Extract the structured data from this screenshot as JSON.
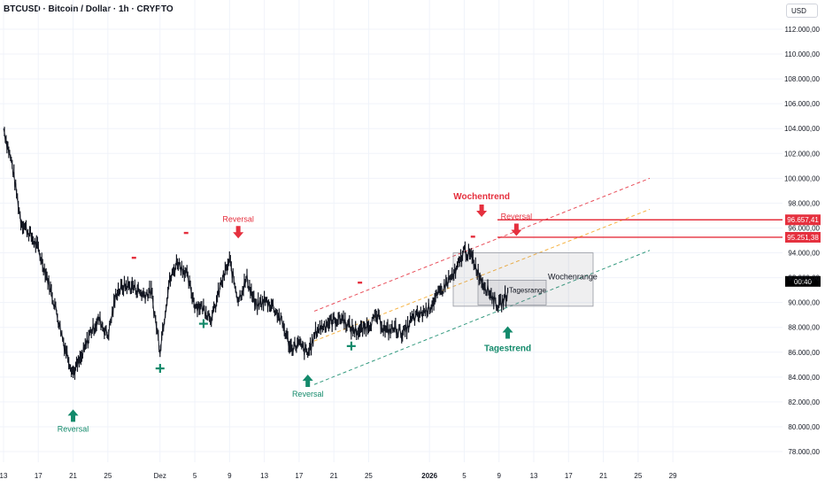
{
  "header": {
    "symbol_title": "BTCUSD · Bitcoin / Dollar · 1h · CRYPTO",
    "currency": "USD"
  },
  "colors": {
    "red": "#e5303e",
    "green": "#138a6b",
    "orange": "#f5a623",
    "candle": "#131722",
    "grid": "#f0f3fa",
    "label_box": "#000000"
  },
  "chart_data": {
    "type": "line",
    "title": "BTCUSD · Bitcoin / Dollar · 1h · CRYPTO",
    "ylabel": "USD",
    "ylim": [
      77000,
      113500
    ],
    "y_ticks": [
      "112.000,00",
      "110.000,00",
      "108.000,00",
      "106.000,00",
      "104.000,00",
      "102.000,00",
      "100.000,00",
      "98.000,00",
      "96.000,00",
      "94.000,00",
      "92.000,00",
      "90.000,00",
      "88.000,00",
      "86.000,00",
      "84.000,00",
      "82.000,00",
      "80.000,00",
      "78.000,00"
    ],
    "x_ticks": [
      "13",
      "17",
      "21",
      "25",
      "Dez",
      "5",
      "9",
      "13",
      "17",
      "21",
      "25",
      "2026",
      "5",
      "9",
      "13",
      "17",
      "21",
      "25",
      "29"
    ],
    "series": [
      {
        "name": "",
        "x": [
          "2025-11-13",
          "2025-11-14",
          "2025-11-15",
          "2025-11-16",
          "2025-11-17",
          "2025-11-18",
          "2025-11-19",
          "2025-11-20",
          "2025-11-21",
          "2025-11-22",
          "2025-11-23",
          "2025-11-24",
          "2025-11-25",
          "2025-11-26",
          "2025-11-27",
          "2025-11-28",
          "2025-11-29",
          "2025-11-30",
          "2025-12-01",
          "2025-12-02",
          "2025-12-03",
          "2025-12-04",
          "2025-12-05",
          "2025-12-06",
          "2025-12-07",
          "2025-12-08",
          "2025-12-09",
          "2025-12-10",
          "2025-12-11",
          "2025-12-12",
          "2025-12-13",
          "2025-12-14",
          "2025-12-15",
          "2025-12-16",
          "2025-12-17",
          "2025-12-18",
          "2025-12-19",
          "2025-12-20",
          "2025-12-21",
          "2025-12-22",
          "2025-12-23",
          "2025-12-24",
          "2025-12-25",
          "2025-12-26",
          "2025-12-27",
          "2025-12-28",
          "2025-12-29",
          "2025-12-30",
          "2025-12-31",
          "2026-01-01",
          "2026-01-02",
          "2026-01-03",
          "2026-01-04",
          "2026-01-05",
          "2026-01-06",
          "2026-01-07",
          "2026-01-08",
          "2026-01-09",
          "2026-01-10"
        ],
        "values": [
          104000,
          101000,
          96500,
          95500,
          94200,
          92000,
          89500,
          86500,
          84300,
          85500,
          87600,
          88600,
          87300,
          90800,
          91300,
          91200,
          90600,
          90800,
          86200,
          91400,
          93300,
          92300,
          89800,
          89500,
          88700,
          91400,
          93300,
          90200,
          91900,
          89600,
          90100,
          89700,
          88400,
          86300,
          86600,
          85800,
          87700,
          88200,
          88500,
          88700,
          87800,
          87600,
          88200,
          88800,
          87600,
          87900,
          87400,
          88600,
          89000,
          89600,
          90500,
          91600,
          92300,
          94200,
          93400,
          91700,
          90700,
          89600,
          90700
        ]
      }
    ],
    "horizontal_levels": [
      {
        "value": 96657.41,
        "label": "96.657,41"
      },
      {
        "value": 95251.38,
        "label": "95.251,38"
      }
    ],
    "annotations": [
      {
        "text": "Reversal",
        "kind": "reversal-up",
        "x": "2025-11-21",
        "y": 80900
      },
      {
        "text": "Reversal",
        "kind": "reversal-down",
        "x": "2025-12-10",
        "y": 95800
      },
      {
        "text": "Reversal",
        "kind": "reversal-up",
        "x": "2025-12-18",
        "y": 83700
      },
      {
        "text": "Reversal",
        "kind": "reversal-down",
        "x": "2026-01-11",
        "y": 96000
      },
      {
        "text": "Wochentrend",
        "kind": "trend-down",
        "x": "2026-01-07",
        "y": 97600
      },
      {
        "text": "Tagestrend",
        "kind": "trend-up",
        "x": "2026-01-10",
        "y": 87800
      },
      {
        "text": "Wochenrange",
        "kind": "range-box",
        "x": "2026-01-05",
        "y": 94000
      },
      {
        "text": "Tagesrange",
        "kind": "range-box",
        "x": "2026-01-05",
        "y": 91800
      }
    ],
    "current_time_label": "00:40",
    "grid": false
  }
}
